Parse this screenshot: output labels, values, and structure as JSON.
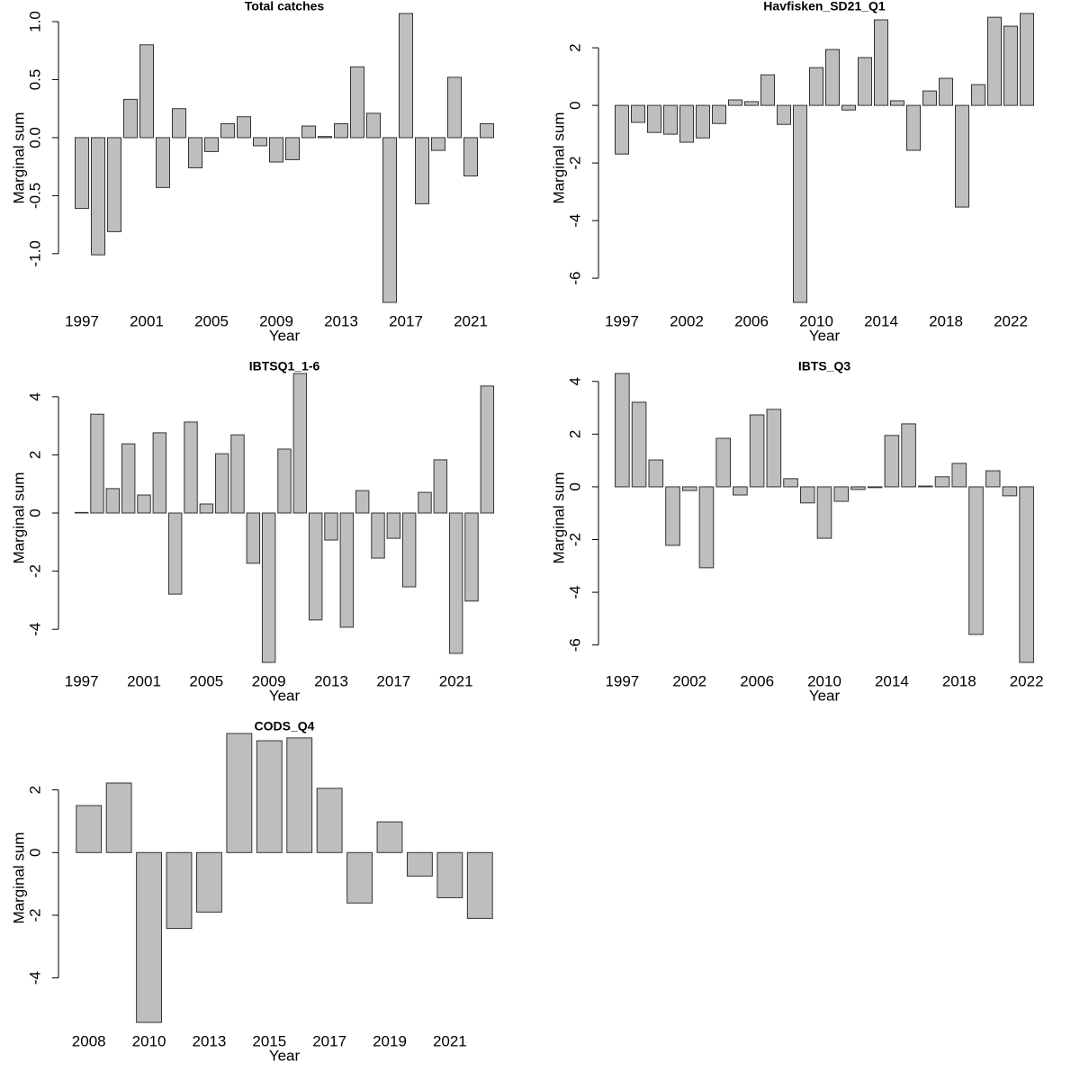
{
  "chart_data": [
    {
      "type": "bar",
      "title": "Total catches",
      "xlabel": "Year",
      "ylabel": "Marginal sum",
      "color": "#bebebe",
      "categories": [
        "1997",
        null,
        null,
        null,
        "2001",
        null,
        null,
        null,
        "2005",
        null,
        null,
        null,
        "2009",
        null,
        null,
        null,
        "2013",
        null,
        null,
        null,
        "2017",
        null,
        null,
        null,
        "2021",
        null
      ],
      "values": [
        -0.61,
        -1.01,
        -0.81,
        0.33,
        0.8,
        -0.43,
        0.25,
        -0.26,
        -0.12,
        0.12,
        0.18,
        -0.07,
        -0.21,
        -0.19,
        0.1,
        0.01,
        0.12,
        0.61,
        0.21,
        -1.42,
        1.07,
        -0.57,
        -0.11,
        0.52,
        -0.33,
        0.12
      ],
      "ylim": [
        -1.42,
        1.07
      ],
      "yticks": [
        {
          "value": -1,
          "label": "-1.0"
        },
        -0.5,
        {
          "value": 0,
          "label": "0.0"
        },
        0.5,
        {
          "value": 1,
          "label": "1.0"
        }
      ]
    },
    {
      "type": "bar",
      "title": "Havfisken_SD21_Q1",
      "xlabel": "Year",
      "ylabel": "Marginal sum",
      "color": "#bebebe",
      "categories": [
        "1997",
        null,
        null,
        null,
        "2002",
        null,
        null,
        null,
        "2006",
        null,
        null,
        null,
        "2010",
        null,
        null,
        null,
        "2014",
        null,
        null,
        null,
        "2018",
        null,
        null,
        null,
        "2022",
        null
      ],
      "values": [
        -1.69,
        -0.59,
        -0.94,
        -1.0,
        -1.28,
        -1.13,
        -0.63,
        0.19,
        0.13,
        1.06,
        -0.66,
        -6.84,
        1.31,
        1.94,
        -0.16,
        1.66,
        2.97,
        0.16,
        -1.56,
        0.5,
        0.94,
        -3.53,
        0.72,
        3.06,
        2.75,
        3.19
      ],
      "ylim": [
        -6.84,
        3.19
      ],
      "yticks": [
        -6,
        -4,
        -2,
        0,
        2
      ]
    },
    {
      "type": "bar",
      "title": "IBTSQ1_1-6",
      "xlabel": "Year",
      "ylabel": "Marginal sum",
      "color": "#bebebe",
      "categories": [
        "1997",
        null,
        null,
        null,
        "2001",
        null,
        null,
        null,
        "2005",
        null,
        null,
        null,
        "2009",
        null,
        null,
        null,
        "2013",
        null,
        null,
        null,
        "2017",
        null,
        null,
        null,
        "2021",
        null,
        null
      ],
      "values": [
        0.02,
        3.4,
        0.84,
        2.38,
        0.62,
        2.76,
        -2.79,
        3.13,
        0.31,
        2.04,
        2.69,
        -1.73,
        -5.14,
        2.2,
        4.8,
        -3.68,
        -0.93,
        -3.93,
        0.77,
        -1.55,
        -0.87,
        -2.54,
        0.71,
        1.83,
        -4.83,
        -3.03,
        4.37
      ],
      "ylim": [
        -5.14,
        4.8
      ],
      "yticks": [
        -4,
        -2,
        0,
        2,
        4
      ]
    },
    {
      "type": "bar",
      "title": "IBTS_Q3",
      "xlabel": "Year",
      "ylabel": "Marginal sum",
      "color": "#bebebe",
      "categories": [
        "1997",
        null,
        null,
        null,
        "2002",
        null,
        null,
        null,
        "2006",
        null,
        null,
        null,
        "2010",
        null,
        null,
        null,
        "2014",
        null,
        null,
        null,
        "2018",
        null,
        null,
        null,
        "2022"
      ],
      "values": [
        4.3,
        3.21,
        1.02,
        -2.22,
        -0.14,
        -3.07,
        1.84,
        -0.31,
        2.73,
        2.94,
        0.31,
        -0.61,
        -1.95,
        -0.55,
        -0.1,
        -0.03,
        1.95,
        2.39,
        0.03,
        0.38,
        0.89,
        -5.6,
        0.61,
        -0.34,
        -6.66
      ],
      "ylim": [
        -6.66,
        4.3
      ],
      "yticks": [
        -6,
        -4,
        -2,
        0,
        2,
        4
      ]
    },
    {
      "type": "bar",
      "title": "CODS_Q4",
      "xlabel": "Year",
      "ylabel": "Marginal sum",
      "color": "#bebebe",
      "categories": [
        "2008",
        null,
        "2010",
        null,
        "2013",
        null,
        "2015",
        null,
        "2017",
        null,
        "2019",
        null,
        "2021",
        null
      ],
      "values": [
        1.5,
        2.22,
        -5.42,
        -2.42,
        -1.9,
        3.8,
        3.57,
        3.66,
        2.05,
        -1.61,
        0.98,
        -0.75,
        -1.44,
        -2.1
      ],
      "ylim": [
        -5.42,
        3.8
      ],
      "yticks": [
        -4,
        -2,
        0,
        2
      ]
    }
  ]
}
